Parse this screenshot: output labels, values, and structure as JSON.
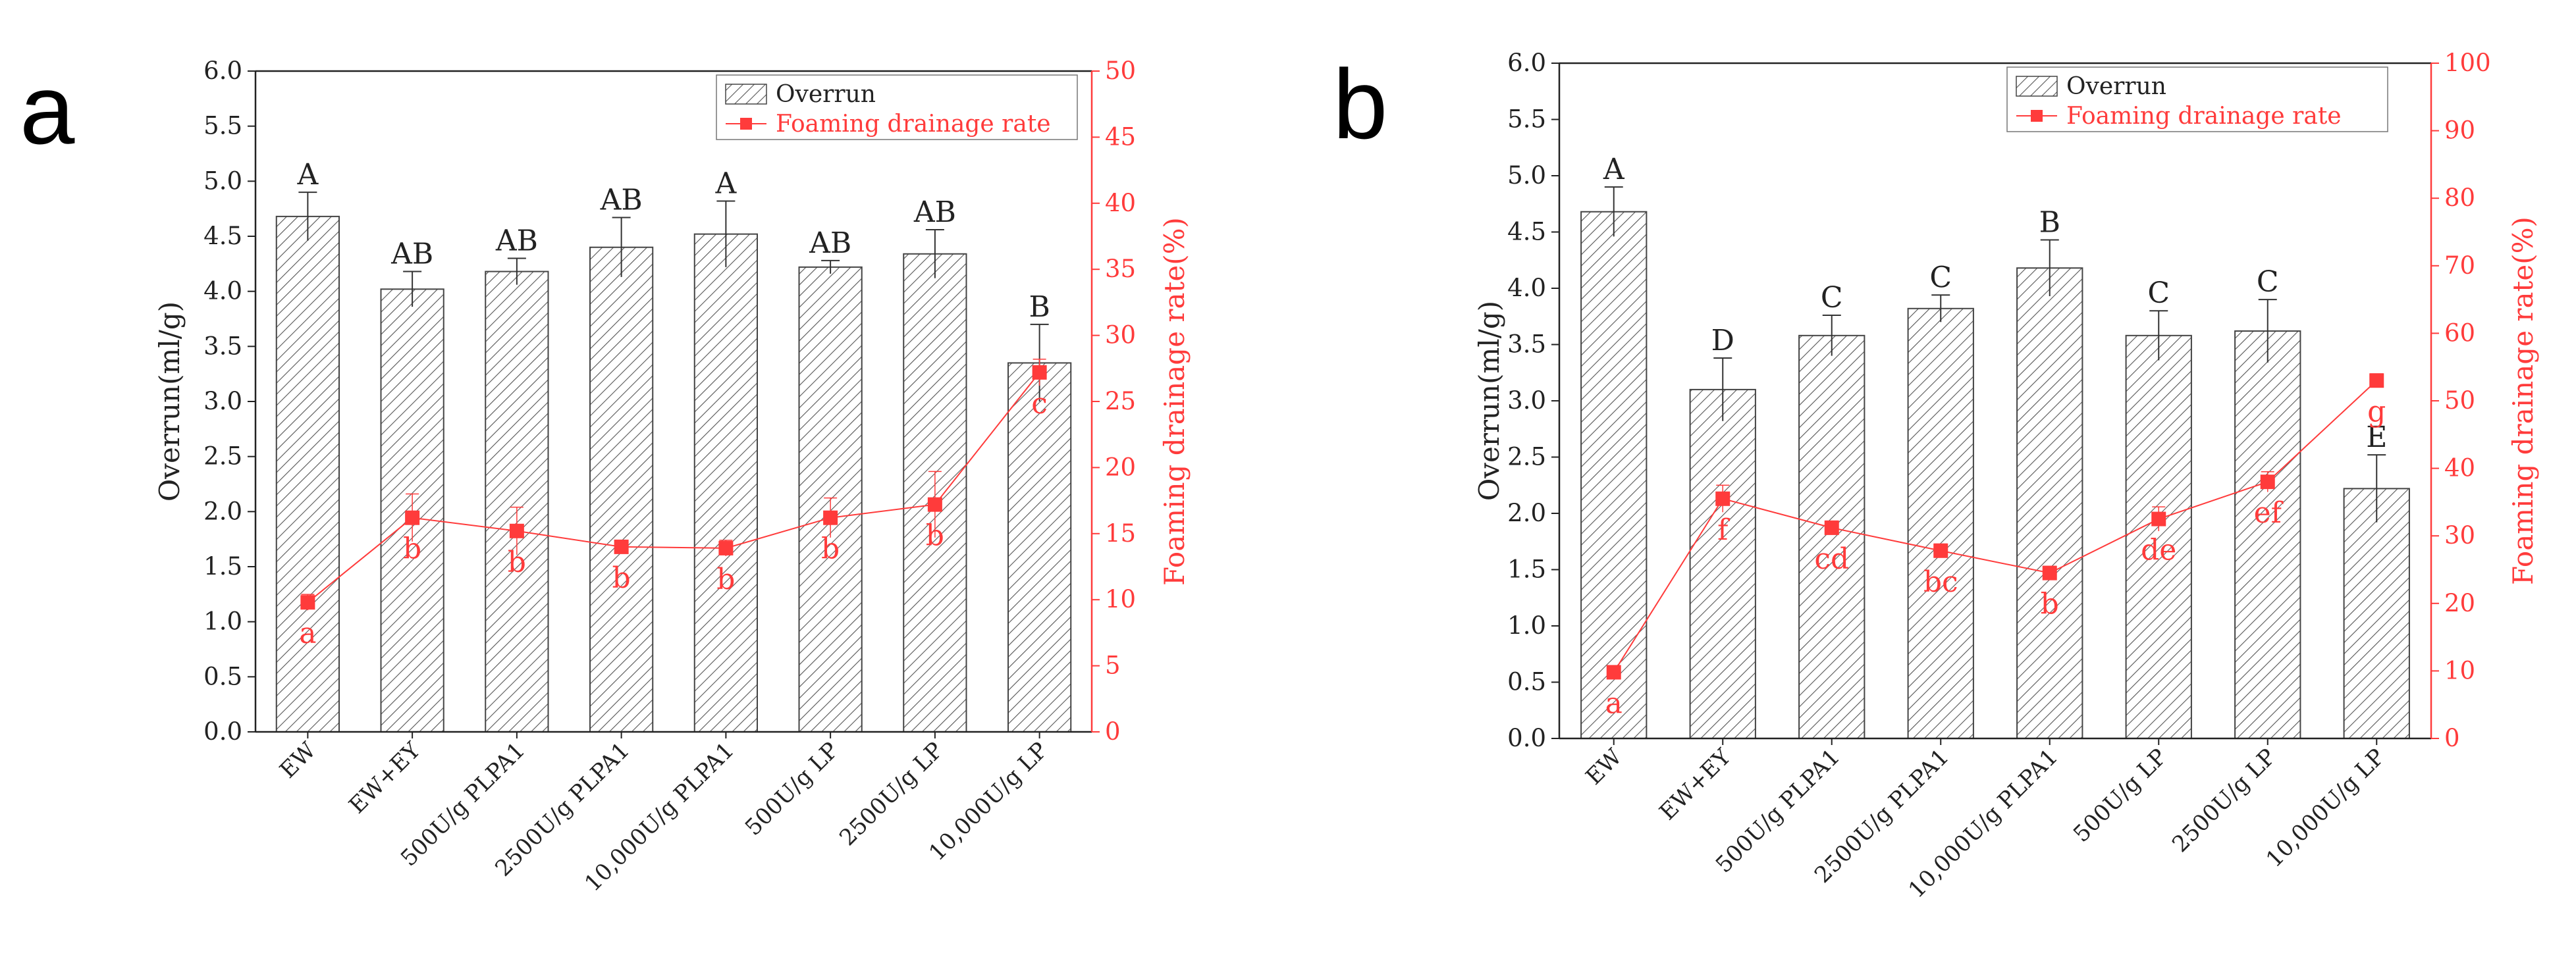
{
  "chart_data": [
    {
      "panel": "a",
      "type": "bar",
      "categories": [
        "EW",
        "EW+EY",
        "500U/g PLPA1",
        "2500U/g PLPA1",
        "10,000U/g PLPA1",
        "500U/g LP",
        "2500U/g LP",
        "10,000U/g LP"
      ],
      "ylabel": "Overrun(ml/g)",
      "y2label": "Foaming drainage rate(%)",
      "ylim": [
        0,
        6
      ],
      "y2lim": [
        0,
        50
      ],
      "yticks": [
        "0.0",
        "0.5",
        "1.0",
        "1.5",
        "2.0",
        "2.5",
        "3.0",
        "3.5",
        "4.0",
        "4.5",
        "5.0",
        "5.5",
        "6.0"
      ],
      "y2ticks": [
        "0",
        "5",
        "10",
        "15",
        "20",
        "25",
        "30",
        "35",
        "40",
        "45",
        "50"
      ],
      "legend": {
        "position": "top-right",
        "bar": "Overrun",
        "line": "Foaming drainage rate"
      },
      "series": [
        {
          "name": "Overrun",
          "kind": "bar",
          "axis": "left",
          "values": [
            4.68,
            4.02,
            4.18,
            4.4,
            4.52,
            4.22,
            4.34,
            3.35
          ],
          "errors": [
            0.22,
            0.16,
            0.12,
            0.27,
            0.3,
            0.06,
            0.22,
            0.35
          ],
          "labels": [
            "A",
            "AB",
            "AB",
            "AB",
            "A",
            "AB",
            "AB",
            "B"
          ]
        },
        {
          "name": "Foaming drainage rate",
          "kind": "line",
          "axis": "right",
          "values": [
            9.8,
            16.2,
            15.2,
            14.0,
            13.9,
            16.2,
            17.2,
            27.2
          ],
          "errors": [
            0.6,
            1.8,
            1.8,
            0.4,
            0.6,
            1.5,
            2.5,
            1.0
          ],
          "labels": [
            "a",
            "b",
            "b",
            "b",
            "b",
            "b",
            "b",
            "c"
          ]
        }
      ]
    },
    {
      "panel": "b",
      "type": "bar",
      "categories": [
        "EW",
        "EW+EY",
        "500U/g PLPA1",
        "2500U/g PLPA1",
        "10,000U/g PLPA1",
        "500U/g LP",
        "2500U/g LP",
        "10,000U/g LP"
      ],
      "ylabel": "Overrun(ml/g)",
      "y2label": "Foaming drainage rate(%)",
      "ylim": [
        0,
        6
      ],
      "y2lim": [
        0,
        100
      ],
      "yticks": [
        "0.0",
        "0.5",
        "1.0",
        "1.5",
        "2.0",
        "2.5",
        "3.0",
        "3.5",
        "4.0",
        "4.5",
        "5.0",
        "5.5",
        "6.0"
      ],
      "y2ticks": [
        "0",
        "10",
        "20",
        "30",
        "40",
        "50",
        "60",
        "70",
        "80",
        "90",
        "100"
      ],
      "legend": {
        "position": "top-right",
        "bar": "Overrun",
        "line": "Foaming drainage rate"
      },
      "series": [
        {
          "name": "Overrun",
          "kind": "bar",
          "axis": "left",
          "values": [
            4.68,
            3.1,
            3.58,
            3.82,
            4.18,
            3.58,
            3.62,
            2.22
          ],
          "errors": [
            0.22,
            0.28,
            0.18,
            0.12,
            0.25,
            0.22,
            0.28,
            0.3
          ],
          "labels": [
            "A",
            "D",
            "C",
            "C",
            "B",
            "C",
            "C",
            "E"
          ]
        },
        {
          "name": "Foaming drainage rate",
          "kind": "line",
          "axis": "right",
          "values": [
            9.8,
            35.5,
            31.2,
            27.8,
            24.5,
            32.5,
            38.0,
            53.0
          ],
          "errors": [
            0.8,
            2.0,
            1.0,
            1.0,
            1.0,
            1.8,
            1.5,
            1.0
          ],
          "labels": [
            "a",
            "f",
            "cd",
            "bc",
            "b",
            "de",
            "ef",
            "g"
          ]
        }
      ]
    }
  ],
  "colors": {
    "line": "#ff3b3b",
    "axis": "#222222",
    "hatch": "#555555"
  }
}
